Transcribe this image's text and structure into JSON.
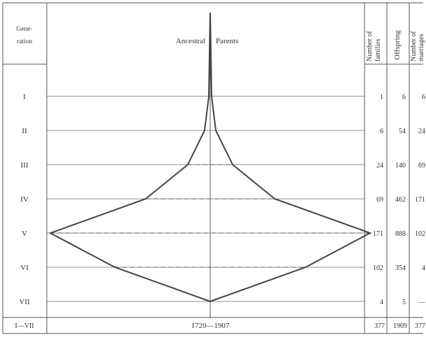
{
  "chart_data": {
    "type": "table",
    "header": {
      "generation_col": "Gene-ration",
      "ancestral_label": "Ancestral",
      "parents_label": "Parents",
      "families_col": "Number of families",
      "offspring_col": "Offspring",
      "marriages_col": "Number of marriages"
    },
    "rows": [
      {
        "generation": "I",
        "families": "1",
        "offspring": "6",
        "marriages": "6"
      },
      {
        "generation": "II",
        "families": "6",
        "offspring": "54",
        "marriages": "24"
      },
      {
        "generation": "III",
        "families": "24",
        "offspring": "140",
        "marriages": "69"
      },
      {
        "generation": "IV",
        "families": "69",
        "offspring": "462",
        "marriages": "171"
      },
      {
        "generation": "V",
        "families": "171",
        "offspring": "888",
        "marriages": "102"
      },
      {
        "generation": "VI",
        "families": "102",
        "offspring": "354",
        "marriages": "4"
      },
      {
        "generation": "VII",
        "families": "4",
        "offspring": "5",
        "marriages": "—"
      }
    ],
    "total": {
      "generation": "I—VII",
      "period": "1720—1907",
      "families": "377",
      "offspring": "1909",
      "marriages": "377"
    },
    "diagram_values": [
      1,
      6,
      24,
      69,
      171,
      102,
      4
    ],
    "diagram_max": 171
  }
}
